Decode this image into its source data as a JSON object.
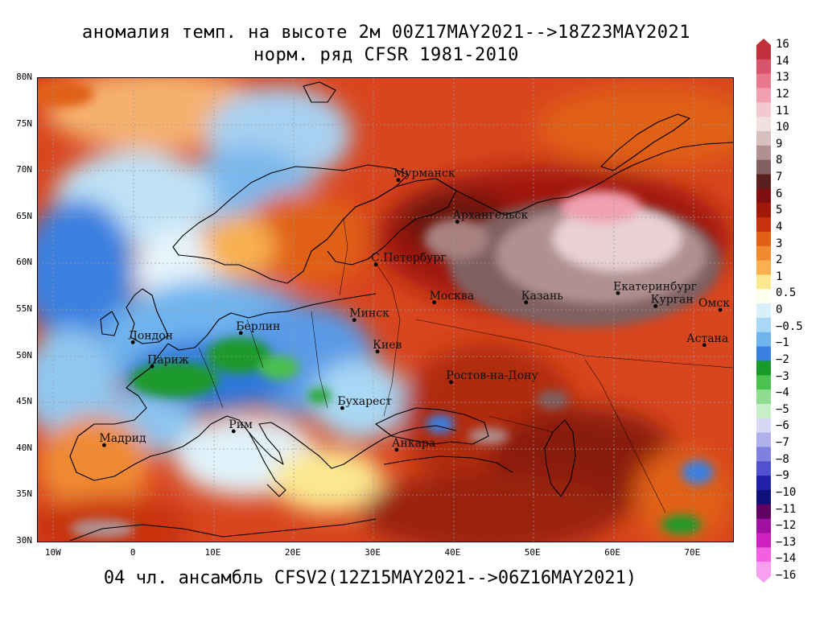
{
  "header": {
    "title_line1": "аномалия темп. на высоте 2м 00Z17MAY2021-->18Z23MAY2021",
    "title_line2": "норм. ряд CFSR 1981-2010"
  },
  "footer": {
    "ensemble_text": "04 чл. ансамбль CFSV2(12Z15MAY2021-->06Z16MAY2021)"
  },
  "map": {
    "lon_range": [
      -12,
      75
    ],
    "lat_range": [
      30,
      80
    ],
    "lat_ticks": [
      "80N",
      "75N",
      "70N",
      "65N",
      "60N",
      "55N",
      "50N",
      "45N",
      "40N",
      "35N",
      "30N"
    ],
    "lon_ticks": [
      "10W",
      "0",
      "10E",
      "20E",
      "30E",
      "40E",
      "50E",
      "60E",
      "70E"
    ],
    "cities": [
      {
        "name": "Мурманск",
        "lon": 33.1,
        "lat": 69.0
      },
      {
        "name": "Архангельск",
        "lon": 40.5,
        "lat": 64.5
      },
      {
        "name": "С.Петербург",
        "lon": 30.3,
        "lat": 59.9
      },
      {
        "name": "Москва",
        "lon": 37.6,
        "lat": 55.8
      },
      {
        "name": "Казань",
        "lon": 49.1,
        "lat": 55.8
      },
      {
        "name": "Екатеринбург",
        "lon": 60.6,
        "lat": 56.8
      },
      {
        "name": "Курган",
        "lon": 65.3,
        "lat": 55.4
      },
      {
        "name": "Омск",
        "lon": 73.4,
        "lat": 55.0
      },
      {
        "name": "Астана",
        "lon": 71.4,
        "lat": 51.2
      },
      {
        "name": "Минск",
        "lon": 27.6,
        "lat": 53.9
      },
      {
        "name": "Киев",
        "lon": 30.5,
        "lat": 50.5
      },
      {
        "name": "Берлин",
        "lon": 13.4,
        "lat": 52.5
      },
      {
        "name": "Лондон",
        "lon": -0.1,
        "lat": 51.5
      },
      {
        "name": "Париж",
        "lon": 2.3,
        "lat": 48.9
      },
      {
        "name": "Ростов-на-Дону",
        "lon": 39.7,
        "lat": 47.2
      },
      {
        "name": "Бухарест",
        "lon": 26.1,
        "lat": 44.4
      },
      {
        "name": "Рим",
        "lon": 12.5,
        "lat": 41.9
      },
      {
        "name": "Мадрид",
        "lon": -3.7,
        "lat": 40.4
      },
      {
        "name": "Анкара",
        "lon": 32.9,
        "lat": 39.9
      }
    ]
  },
  "colorbar": {
    "levels": [
      "16",
      "14",
      "13",
      "12",
      "11",
      "10",
      "9",
      "8",
      "7",
      "6",
      "5",
      "4",
      "3",
      "2",
      "1",
      "0.5",
      "0",
      "−0.5",
      "−1",
      "−2",
      "−3",
      "−4",
      "−5",
      "−6",
      "−7",
      "−8",
      "−9",
      "−10",
      "−11",
      "−12",
      "−13",
      "−14",
      "−16"
    ],
    "colors": [
      "#c0303a",
      "#d8546a",
      "#e8788c",
      "#f0a0b0",
      "#f4c8d0",
      "#f0e0e0",
      "#d8c0c0",
      "#b09090",
      "#806060",
      "#5a2020",
      "#801010",
      "#a01808",
      "#c83010",
      "#e06018",
      "#f08a30",
      "#f8b050",
      "#fce890",
      "#fffff0",
      "#d8f0fa",
      "#a8d8f5",
      "#70b4ee",
      "#3a80e0",
      "#1a9a2a",
      "#4cc050",
      "#90dc90",
      "#c8f0c8",
      "#d8d8f4",
      "#b0b0ec",
      "#8080e0",
      "#5050d0",
      "#2020a8",
      "#10107a",
      "#600060",
      "#a010a0",
      "#d020c0",
      "#f060e0",
      "#f8a0f0"
    ]
  }
}
